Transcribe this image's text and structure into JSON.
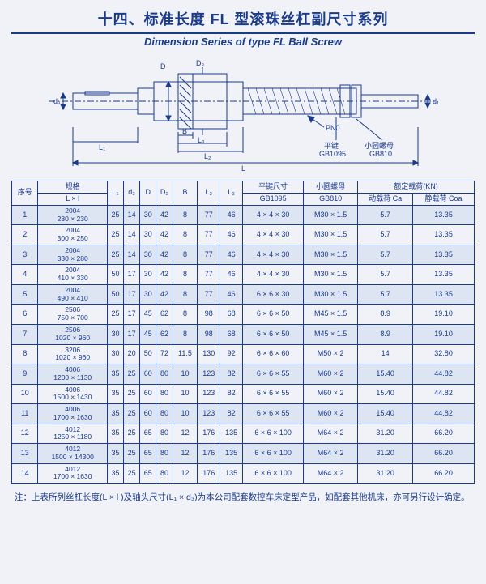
{
  "title_cn": "十四、标准长度 FL 型滚珠丝杠副尺寸系列",
  "title_en": "Dimension Series of type FL Ball Screw",
  "diagram": {
    "labels": {
      "d3_left": "d₃",
      "d1_right": "d₁",
      "D": "D",
      "D3": "D₃",
      "B": "B",
      "L3": "L₃",
      "L2": "L₂",
      "L1": "L₁",
      "L": "L",
      "PN0": "PN0",
      "flat_key": "平键",
      "gb1095": "GB1095",
      "round_nut": "小圆螺母",
      "gb810": "GB810"
    },
    "colors": {
      "line": "#1a3a8a",
      "bg": "#f0f2f8"
    }
  },
  "table": {
    "headers": {
      "no": "序号",
      "spec_top": "规格",
      "spec_bot": "L × l",
      "L1": "L₁",
      "d3": "d₃",
      "D": "D",
      "D3": "D₃",
      "B": "B",
      "L2": "L₂",
      "L3": "L₃",
      "flatkey_top": "平键尺寸",
      "flatkey_bot": "GB1095",
      "nut_top": "小圆螺母",
      "nut_bot": "GB810",
      "load_header": "额定载荷(KN)",
      "ca": "动载荷 Ca",
      "coa": "静载荷 Coa"
    },
    "rows": [
      {
        "no": "1",
        "spec_t": "2004",
        "spec_b": "280 × 230",
        "L1": "25",
        "d3": "14",
        "D": "30",
        "D3": "42",
        "B": "8",
        "L2": "77",
        "L3": "46",
        "fk": "4 × 4 × 30",
        "nut": "M30 × 1.5",
        "ca": "5.7",
        "coa": "13.35",
        "shade": true
      },
      {
        "no": "2",
        "spec_t": "2004",
        "spec_b": "300 × 250",
        "L1": "25",
        "d3": "14",
        "D": "30",
        "D3": "42",
        "B": "8",
        "L2": "77",
        "L3": "46",
        "fk": "4 × 4 × 30",
        "nut": "M30 × 1.5",
        "ca": "5.7",
        "coa": "13.35",
        "shade": false
      },
      {
        "no": "3",
        "spec_t": "2004",
        "spec_b": "330 × 280",
        "L1": "25",
        "d3": "14",
        "D": "30",
        "D3": "42",
        "B": "8",
        "L2": "77",
        "L3": "46",
        "fk": "4 × 4 × 30",
        "nut": "M30 × 1.5",
        "ca": "5.7",
        "coa": "13.35",
        "shade": true
      },
      {
        "no": "4",
        "spec_t": "2004",
        "spec_b": "410 × 330",
        "L1": "50",
        "d3": "17",
        "D": "30",
        "D3": "42",
        "B": "8",
        "L2": "77",
        "L3": "46",
        "fk": "4 × 4 × 30",
        "nut": "M30 × 1.5",
        "ca": "5.7",
        "coa": "13.35",
        "shade": false
      },
      {
        "no": "5",
        "spec_t": "2004",
        "spec_b": "490 × 410",
        "L1": "50",
        "d3": "17",
        "D": "30",
        "D3": "42",
        "B": "8",
        "L2": "77",
        "L3": "46",
        "fk": "6 × 6 × 30",
        "nut": "M30 × 1.5",
        "ca": "5.7",
        "coa": "13.35",
        "shade": true
      },
      {
        "no": "6",
        "spec_t": "2506",
        "spec_b": "750 × 700",
        "L1": "25",
        "d3": "17",
        "D": "45",
        "D3": "62",
        "B": "8",
        "L2": "98",
        "L3": "68",
        "fk": "6 × 6 × 50",
        "nut": "M45 × 1.5",
        "ca": "8.9",
        "coa": "19.10",
        "shade": false
      },
      {
        "no": "7",
        "spec_t": "2506",
        "spec_b": "1020 × 960",
        "L1": "30",
        "d3": "17",
        "D": "45",
        "D3": "62",
        "B": "8",
        "L2": "98",
        "L3": "68",
        "fk": "6 × 6 × 50",
        "nut": "M45 × 1.5",
        "ca": "8.9",
        "coa": "19.10",
        "shade": true
      },
      {
        "no": "8",
        "spec_t": "3206",
        "spec_b": "1020 × 960",
        "L1": "30",
        "d3": "20",
        "D": "50",
        "D3": "72",
        "B": "11.5",
        "L2": "130",
        "L3": "92",
        "fk": "6 × 6 × 60",
        "nut": "M50 × 2",
        "ca": "14",
        "coa": "32.80",
        "shade": false
      },
      {
        "no": "9",
        "spec_t": "4006",
        "spec_b": "1200 × 1130",
        "L1": "35",
        "d3": "25",
        "D": "60",
        "D3": "80",
        "B": "10",
        "L2": "123",
        "L3": "82",
        "fk": "6 × 6 × 55",
        "nut": "M60 × 2",
        "ca": "15.40",
        "coa": "44.82",
        "shade": true
      },
      {
        "no": "10",
        "spec_t": "4006",
        "spec_b": "1500 × 1430",
        "L1": "35",
        "d3": "25",
        "D": "60",
        "D3": "80",
        "B": "10",
        "L2": "123",
        "L3": "82",
        "fk": "6 × 6 × 55",
        "nut": "M60 × 2",
        "ca": "15.40",
        "coa": "44.82",
        "shade": false
      },
      {
        "no": "11",
        "spec_t": "4006",
        "spec_b": "1700 × 1630",
        "L1": "35",
        "d3": "25",
        "D": "60",
        "D3": "80",
        "B": "10",
        "L2": "123",
        "L3": "82",
        "fk": "6 × 6 × 55",
        "nut": "M60 × 2",
        "ca": "15.40",
        "coa": "44.82",
        "shade": true
      },
      {
        "no": "12",
        "spec_t": "4012",
        "spec_b": "1250 × 1180",
        "L1": "35",
        "d3": "25",
        "D": "65",
        "D3": "80",
        "B": "12",
        "L2": "176",
        "L3": "135",
        "fk": "6 × 6 × 100",
        "nut": "M64 × 2",
        "ca": "31.20",
        "coa": "66.20",
        "shade": false
      },
      {
        "no": "13",
        "spec_t": "4012",
        "spec_b": "1500 × 14300",
        "L1": "35",
        "d3": "25",
        "D": "65",
        "D3": "80",
        "B": "12",
        "L2": "176",
        "L3": "135",
        "fk": "6 × 6 × 100",
        "nut": "M64 × 2",
        "ca": "31.20",
        "coa": "66.20",
        "shade": true
      },
      {
        "no": "14",
        "spec_t": "4012",
        "spec_b": "1700 × 1630",
        "L1": "35",
        "d3": "25",
        "D": "65",
        "D3": "80",
        "B": "12",
        "L2": "176",
        "L3": "135",
        "fk": "6 × 6 × 100",
        "nut": "M64 × 2",
        "ca": "31.20",
        "coa": "66.20",
        "shade": false
      }
    ]
  },
  "footnote": "注：上表所列丝杠长度(L × l )及轴头尺寸(L₁ × d₃)为本公司配套数控车床定型产品，如配套其他机床，亦可另行设计确定。"
}
